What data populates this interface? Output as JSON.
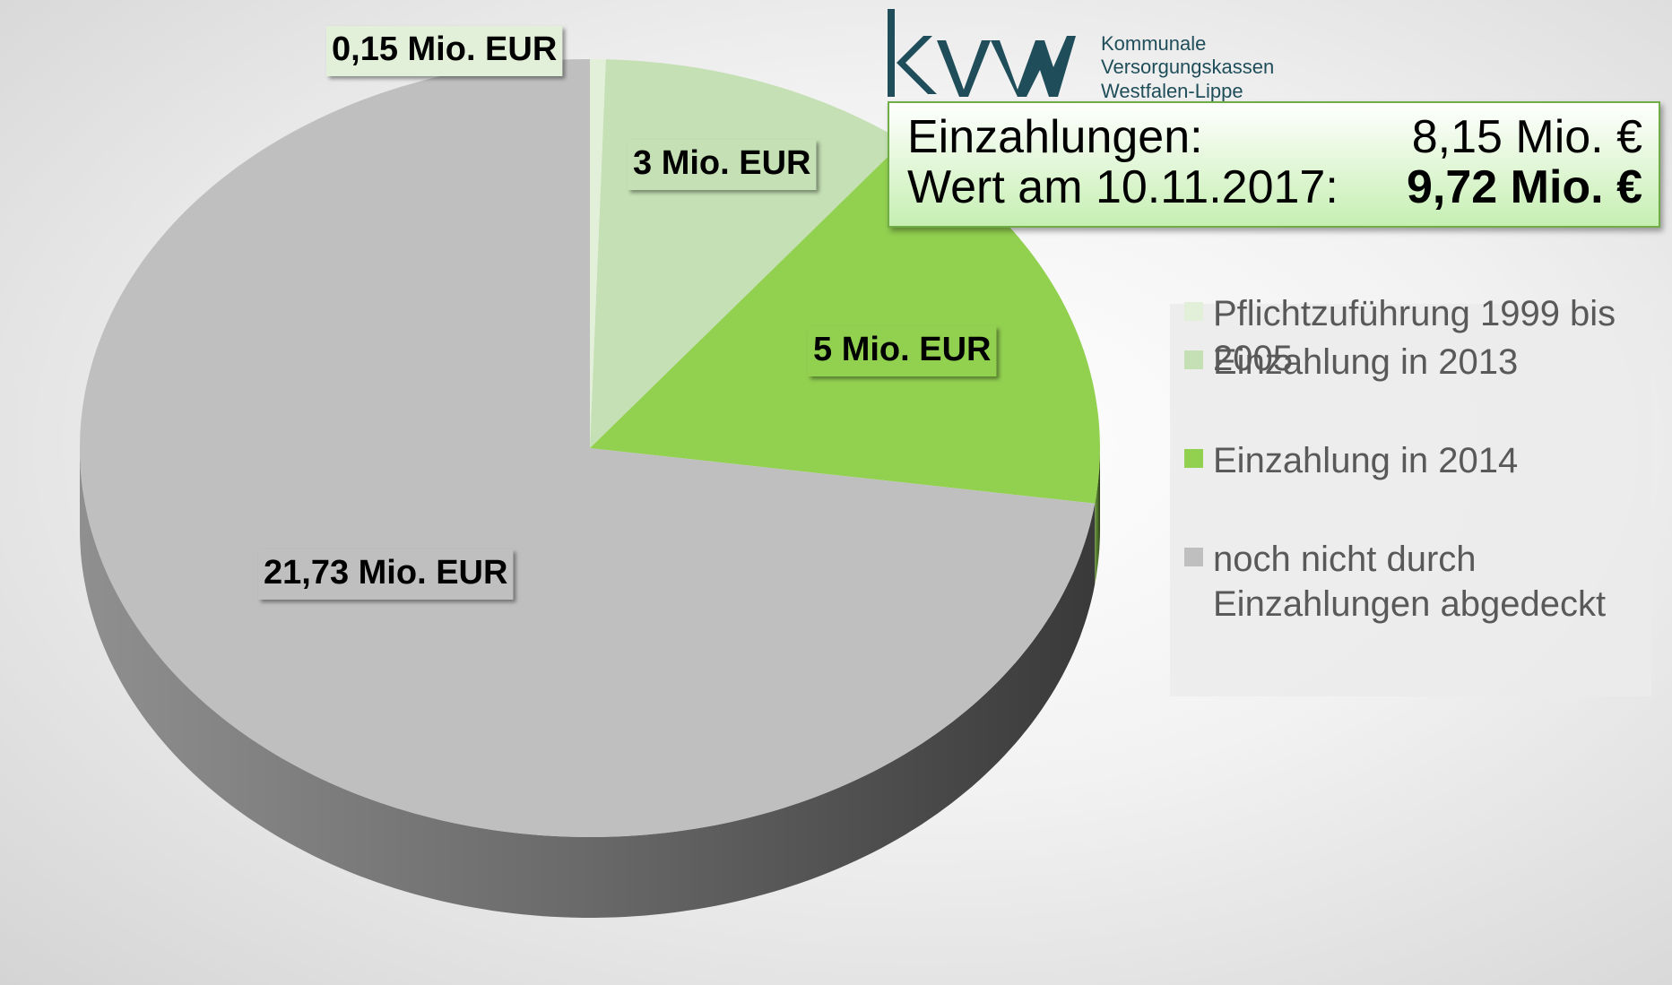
{
  "chart_data": {
    "type": "pie",
    "categories": [
      "Pflichtzuführung 1999 bis 2005",
      "Einzahlung in 2013",
      "Einzahlung in 2014",
      "noch nicht durch Einzahlungen abgedeckt"
    ],
    "values": [
      0.15,
      3,
      5,
      21.73
    ],
    "value_labels": [
      "0,15 Mio. EUR",
      "3 Mio. EUR",
      "5 Mio. EUR",
      "21,73 Mio. EUR"
    ],
    "colors": [
      "#e2f0d9",
      "#c5e0b4",
      "#92d050",
      "#bfbfbf"
    ],
    "legend": "right"
  },
  "info_box": {
    "rows": [
      [
        "Einzahlungen:",
        "8,15 Mio. €"
      ],
      [
        "Wert am 10.11.2017:",
        "9,72 Mio. €"
      ]
    ]
  },
  "logo": {
    "lines": [
      "Kommunale",
      "Versorgungskassen",
      "Westfalen-Lippe"
    ]
  }
}
